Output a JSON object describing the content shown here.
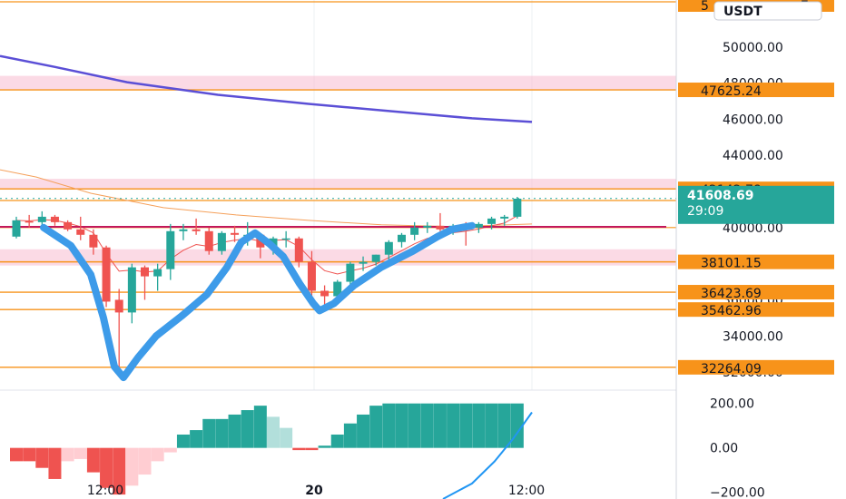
{
  "chart_data": {
    "type": "candlestick",
    "currency_label": "USDT",
    "colors": {
      "up": "#26a69a",
      "down": "#ef5350",
      "up_hist_light": "#b2dfdb",
      "down_hist_light": "#ffcdd2",
      "level_line": "#f7931a",
      "level_badge": "#f7931a",
      "zone_fill": "#f8bbd0",
      "ma_long": "#5b4fd6",
      "ma_short_red": "#ef5350",
      "ma_orange": "#f5a05a",
      "hline_red": "#c2185b",
      "drawn_pattern": "#3d9be9",
      "macd_line": "#2196f3",
      "current_badge": "#26a69a"
    },
    "price_axis": {
      "range": [
        31000,
        52600
      ],
      "ticks": [
        "34000.00",
        "36000.00",
        "40000.00",
        "44000.00",
        "46000.00",
        "48000.00",
        "50000.00"
      ],
      "partial_ticks": [
        "32000.00"
      ],
      "top_partial_label": "5",
      "top_partial_label_right": "7"
    },
    "level_labels": [
      {
        "text": "47625.24",
        "value": 47625.24
      },
      {
        "text": "42142.78",
        "value": 42142.78
      },
      {
        "text": "38101.15",
        "value": 38101.15
      },
      {
        "text": "36423.69",
        "value": 36423.69
      },
      {
        "text": "35462.96",
        "value": 35462.96
      },
      {
        "text": "32264.09",
        "value": 32264.09
      }
    ],
    "extra_level_lines": [
      52500,
      41500,
      40000
    ],
    "zones": [
      {
        "from": 47600,
        "to": 48400
      },
      {
        "from": 42100,
        "to": 42700
      },
      {
        "from": 37900,
        "to": 38800
      }
    ],
    "current_price": {
      "text": "41608.69",
      "countdown": "29:09",
      "value": 41608.69
    },
    "hline_red": 40040,
    "time_labels": [
      "12:00",
      "20",
      "12:00"
    ],
    "candles": [
      {
        "o": 39500,
        "h": 40600,
        "l": 39400,
        "c": 40400
      },
      {
        "o": 40350,
        "h": 40700,
        "l": 40000,
        "c": 40300
      },
      {
        "o": 40300,
        "h": 40900,
        "l": 40100,
        "c": 40600
      },
      {
        "o": 40600,
        "h": 40700,
        "l": 40100,
        "c": 40300
      },
      {
        "o": 40300,
        "h": 40400,
        "l": 39800,
        "c": 39900
      },
      {
        "o": 39900,
        "h": 40600,
        "l": 39300,
        "c": 39600
      },
      {
        "o": 39600,
        "h": 39900,
        "l": 38500,
        "c": 38900
      },
      {
        "o": 38900,
        "h": 39000,
        "l": 35600,
        "c": 35900
      },
      {
        "o": 36000,
        "h": 36600,
        "l": 32200,
        "c": 35300
      },
      {
        "o": 35300,
        "h": 38000,
        "l": 34700,
        "c": 37800
      },
      {
        "o": 37800,
        "h": 37900,
        "l": 36000,
        "c": 37300
      },
      {
        "o": 37300,
        "h": 38000,
        "l": 36500,
        "c": 37700
      },
      {
        "o": 37700,
        "h": 40200,
        "l": 37100,
        "c": 39800
      },
      {
        "o": 39800,
        "h": 40200,
        "l": 39300,
        "c": 39900
      },
      {
        "o": 39900,
        "h": 40500,
        "l": 39600,
        "c": 39800
      },
      {
        "o": 39800,
        "h": 40000,
        "l": 38500,
        "c": 38700
      },
      {
        "o": 38700,
        "h": 39800,
        "l": 38500,
        "c": 39700
      },
      {
        "o": 39700,
        "h": 40100,
        "l": 39200,
        "c": 39600
      },
      {
        "o": 39600,
        "h": 40300,
        "l": 39000,
        "c": 39600
      },
      {
        "o": 39600,
        "h": 39700,
        "l": 38300,
        "c": 38900
      },
      {
        "o": 38900,
        "h": 39500,
        "l": 38500,
        "c": 39400
      },
      {
        "o": 39400,
        "h": 39800,
        "l": 38900,
        "c": 39400
      },
      {
        "o": 39400,
        "h": 39500,
        "l": 37800,
        "c": 38100
      },
      {
        "o": 38100,
        "h": 38700,
        "l": 36200,
        "c": 36500
      },
      {
        "o": 36500,
        "h": 36800,
        "l": 35400,
        "c": 36200
      },
      {
        "o": 36200,
        "h": 37100,
        "l": 36000,
        "c": 37000
      },
      {
        "o": 37000,
        "h": 38100,
        "l": 36800,
        "c": 38000
      },
      {
        "o": 38000,
        "h": 38400,
        "l": 37600,
        "c": 38100
      },
      {
        "o": 38100,
        "h": 38500,
        "l": 37900,
        "c": 38500
      },
      {
        "o": 38500,
        "h": 39300,
        "l": 38000,
        "c": 39200
      },
      {
        "o": 39200,
        "h": 39700,
        "l": 38900,
        "c": 39600
      },
      {
        "o": 39600,
        "h": 40300,
        "l": 39300,
        "c": 40000
      },
      {
        "o": 40000,
        "h": 40300,
        "l": 39700,
        "c": 40100
      },
      {
        "o": 40100,
        "h": 40800,
        "l": 39800,
        "c": 39900
      },
      {
        "o": 39900,
        "h": 40200,
        "l": 39600,
        "c": 40100
      },
      {
        "o": 40100,
        "h": 40300,
        "l": 39000,
        "c": 40000
      },
      {
        "o": 40000,
        "h": 40300,
        "l": 39700,
        "c": 40200
      },
      {
        "o": 40200,
        "h": 40600,
        "l": 39900,
        "c": 40500
      },
      {
        "o": 40500,
        "h": 40700,
        "l": 40100,
        "c": 40600
      },
      {
        "o": 40600,
        "h": 41700,
        "l": 40500,
        "c": 41600
      }
    ],
    "macd_hist": [
      -60,
      -60,
      -90,
      -140,
      -60,
      -50,
      -110,
      -180,
      -210,
      -170,
      -120,
      -60,
      -20,
      60,
      80,
      130,
      130,
      150,
      170,
      190,
      140,
      90,
      -10,
      -10,
      10,
      60,
      110,
      150,
      190,
      200,
      200,
      200,
      200,
      200,
      200,
      200,
      200,
      200,
      200,
      200
    ],
    "macd_axis": {
      "range": [
        -230,
        260
      ],
      "ticks": [
        "200.00",
        "0.00",
        "−200.00"
      ]
    }
  }
}
